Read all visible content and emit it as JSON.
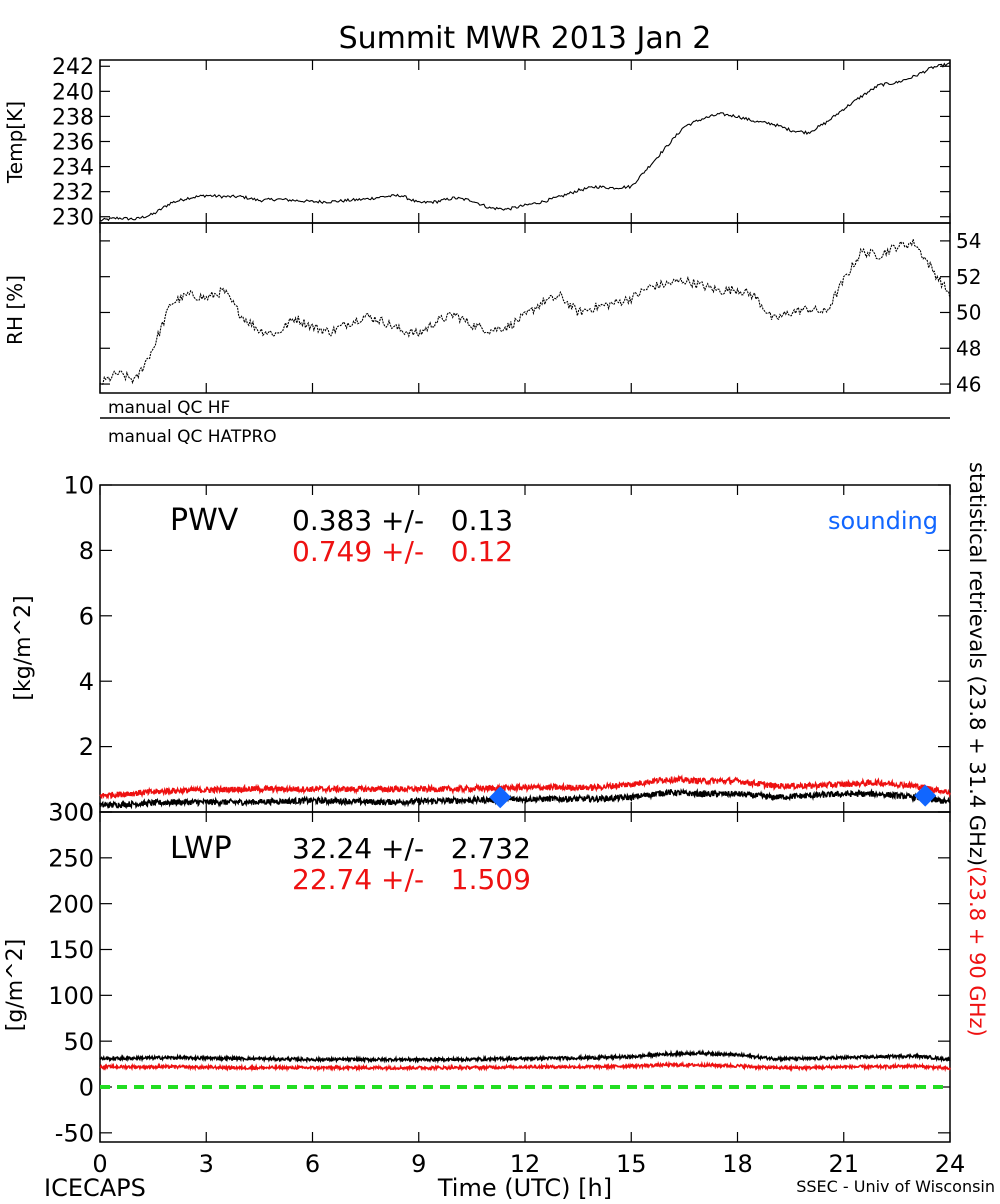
{
  "title": "Summit MWR 2013 Jan  2",
  "footer": {
    "left": "ICECAPS",
    "center": "Time (UTC) [h]",
    "right": "SSEC - Univ of Wisconsin"
  },
  "colors": {
    "hf": "#000000",
    "hatpro": "#ee1111",
    "sounding": "#1166ff",
    "zero_line": "#22dd22"
  },
  "right_side_label": {
    "black_part": "statistical retrievals (23.8 + 31.4 GHz)",
    "red_part": "(23.8 + 90 GHz)"
  },
  "qc": {
    "hf_label": "manual QC HF",
    "hatpro_label": "manual QC HATPRO"
  },
  "chart_data": [
    {
      "type": "line",
      "panel": "temperature",
      "ylabel": "Temp[K]",
      "xlim": [
        0,
        24
      ],
      "ylim": [
        229.5,
        242.5
      ],
      "yticks": [
        230,
        232,
        234,
        236,
        238,
        240,
        242
      ],
      "series": [
        {
          "x": [
            0,
            0.5,
            1,
            1.5,
            2,
            2.5,
            3,
            3.5,
            4,
            4.5,
            5,
            5.5,
            6,
            6.5,
            7,
            7.5,
            8,
            8.5,
            9,
            9.5,
            10,
            10.5,
            11,
            11.5,
            12,
            12.5,
            13,
            13.5,
            14,
            14.5,
            15,
            15.5,
            16,
            16.5,
            17,
            17.5,
            18,
            18.5,
            19,
            19.5,
            20,
            20.5,
            21,
            21.5,
            22,
            22.5,
            23,
            23.5,
            24
          ],
          "values": [
            229.7,
            229.9,
            229.8,
            230.2,
            231.1,
            231.5,
            231.7,
            231.6,
            231.6,
            231.3,
            231.4,
            231.3,
            231.2,
            231.2,
            231.3,
            231.4,
            231.6,
            231.7,
            231.1,
            231.2,
            231.5,
            231.3,
            230.7,
            230.6,
            230.9,
            231.2,
            231.6,
            232.1,
            232.4,
            232.3,
            232.4,
            234.0,
            235.6,
            237.2,
            237.8,
            238.2,
            238.0,
            237.6,
            237.4,
            236.9,
            236.7,
            237.5,
            238.6,
            239.6,
            240.5,
            240.7,
            241.2,
            241.9,
            242.2
          ]
        }
      ]
    },
    {
      "type": "line",
      "panel": "humidity",
      "ylabel": "RH [%]",
      "xlim": [
        0,
        24
      ],
      "ylim": [
        45.5,
        55
      ],
      "yticks": [
        46,
        48,
        50,
        52,
        54
      ],
      "series": [
        {
          "x": [
            0,
            0.5,
            1,
            1.5,
            2,
            2.5,
            3,
            3.5,
            4,
            4.5,
            5,
            5.5,
            6,
            6.5,
            7,
            7.5,
            8,
            8.5,
            9,
            9.5,
            10,
            10.5,
            11,
            11.5,
            12,
            12.5,
            13,
            13.5,
            14,
            14.5,
            15,
            15.5,
            16,
            16.5,
            17,
            17.5,
            18,
            18.5,
            19,
            19.5,
            20,
            20.5,
            21,
            21.5,
            22,
            22.5,
            23,
            23.5,
            24
          ],
          "values": [
            46.0,
            46.6,
            46.2,
            48.0,
            50.5,
            51.0,
            50.8,
            51.2,
            49.8,
            49.0,
            48.8,
            49.7,
            49.2,
            48.9,
            49.4,
            49.8,
            49.5,
            49.0,
            48.8,
            49.5,
            49.9,
            49.3,
            49.0,
            49.2,
            49.8,
            50.6,
            50.9,
            50.0,
            50.3,
            50.5,
            50.8,
            51.4,
            51.6,
            51.8,
            51.5,
            51.2,
            51.3,
            50.9,
            49.6,
            50.0,
            50.2,
            50.0,
            51.8,
            53.4,
            53.2,
            53.7,
            53.9,
            52.4,
            51.0
          ]
        }
      ]
    },
    {
      "type": "line",
      "panel": "pwv",
      "ylabel": "[kg/m^2]",
      "label": "PWV",
      "xlim": [
        0,
        24
      ],
      "ylim": [
        0,
        10
      ],
      "yticks": [
        0,
        2,
        4,
        6,
        8,
        10
      ],
      "stats": [
        {
          "text": "0.383 +/-   0.13",
          "color": "#000000"
        },
        {
          "text": "0.749 +/-   0.12",
          "color": "#ee1111"
        }
      ],
      "legend": {
        "sounding": "sounding"
      },
      "series": [
        {
          "color": "#000000",
          "x": [
            0,
            2,
            4,
            6,
            8,
            10,
            12,
            14,
            15,
            16,
            17,
            18,
            19,
            20,
            21,
            22,
            23,
            24
          ],
          "values": [
            0.2,
            0.3,
            0.3,
            0.35,
            0.3,
            0.35,
            0.4,
            0.4,
            0.45,
            0.6,
            0.55,
            0.55,
            0.45,
            0.5,
            0.55,
            0.55,
            0.45,
            0.3
          ]
        },
        {
          "color": "#ee1111",
          "x": [
            0,
            2,
            4,
            6,
            8,
            10,
            12,
            14,
            15,
            16,
            17,
            18,
            19,
            20,
            21,
            22,
            23,
            24
          ],
          "values": [
            0.5,
            0.65,
            0.7,
            0.7,
            0.7,
            0.7,
            0.75,
            0.75,
            0.85,
            1.0,
            0.95,
            0.95,
            0.8,
            0.8,
            0.85,
            0.9,
            0.8,
            0.6
          ]
        }
      ],
      "sounding_points": {
        "x": [
          11.3,
          23.3
        ],
        "values": [
          0.45,
          0.5
        ]
      }
    },
    {
      "type": "line",
      "panel": "lwp",
      "ylabel": "[g/m^2]",
      "xlabel": "Time (UTC) [h]",
      "label": "LWP",
      "xlim": [
        0,
        24
      ],
      "ylim": [
        -60,
        300
      ],
      "yticks": [
        -50,
        0,
        50,
        100,
        150,
        200,
        250,
        300
      ],
      "xticks": [
        0,
        3,
        6,
        9,
        12,
        15,
        18,
        21,
        24
      ],
      "stats": [
        {
          "text": "32.24 +/-   2.732",
          "color": "#000000"
        },
        {
          "text": "22.74 +/-   1.509",
          "color": "#ee1111"
        }
      ],
      "series": [
        {
          "color": "#000000",
          "x": [
            0,
            2,
            4,
            6,
            8,
            10,
            12,
            14,
            15,
            16,
            17,
            18,
            19,
            20,
            21,
            22,
            23,
            24
          ],
          "values": [
            31,
            32,
            31,
            30,
            30,
            30,
            31,
            32,
            33,
            36,
            37,
            35,
            31,
            31,
            32,
            33,
            34,
            30
          ]
        },
        {
          "color": "#ee1111",
          "x": [
            0,
            2,
            4,
            6,
            8,
            10,
            12,
            14,
            15,
            16,
            17,
            18,
            19,
            20,
            21,
            22,
            23,
            24
          ],
          "values": [
            22,
            22,
            21,
            21,
            21,
            21,
            22,
            22,
            23,
            24,
            24,
            23,
            21,
            21,
            22,
            22,
            23,
            20
          ]
        }
      ],
      "zero_line": 0
    }
  ]
}
